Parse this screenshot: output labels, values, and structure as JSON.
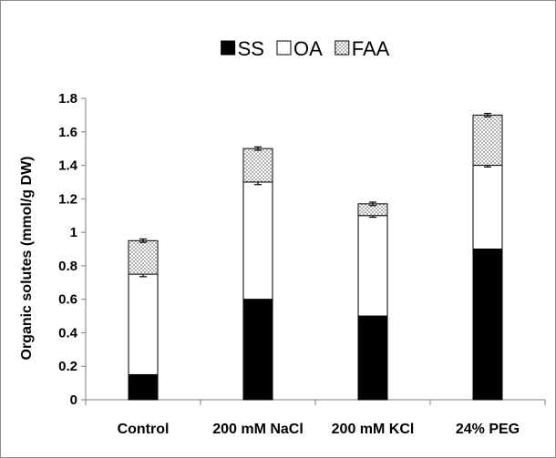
{
  "chart_data": {
    "type": "bar",
    "stacked": true,
    "categories": [
      "Control",
      "200 mM NaCl",
      "200 mM KCl",
      "24% PEG"
    ],
    "series": [
      {
        "name": "SS",
        "color": "#000000",
        "pattern": "solid",
        "values": [
          0.15,
          0.6,
          0.5,
          0.9
        ],
        "errors": [
          0.01,
          0.02,
          0.03,
          0.03
        ]
      },
      {
        "name": "OA",
        "color": "#ffffff",
        "pattern": "none",
        "values": [
          0.6,
          0.7,
          0.6,
          0.5
        ],
        "errors": [
          0.015,
          0.015,
          0.01,
          0.01
        ]
      },
      {
        "name": "FAA",
        "color": "#d9d9d9",
        "pattern": "dotted",
        "values": [
          0.2,
          0.2,
          0.07,
          0.3
        ],
        "errors": [
          0.01,
          0.01,
          0.01,
          0.01
        ]
      }
    ],
    "ylabel": "Organic solutes (mmol/g DW)",
    "xlabel": "",
    "ylim": [
      0,
      1.8
    ],
    "yticks": [
      0,
      0.2,
      0.4,
      0.6,
      0.8,
      1,
      1.2,
      1.4,
      1.6,
      1.8
    ],
    "ytick_labels": [
      "0",
      "0.2",
      "0.4",
      "0.6",
      "0.8",
      "1",
      "1.2",
      "1.4",
      "1.6",
      "1.8"
    ],
    "grid": false,
    "legend_position": "top-center"
  }
}
